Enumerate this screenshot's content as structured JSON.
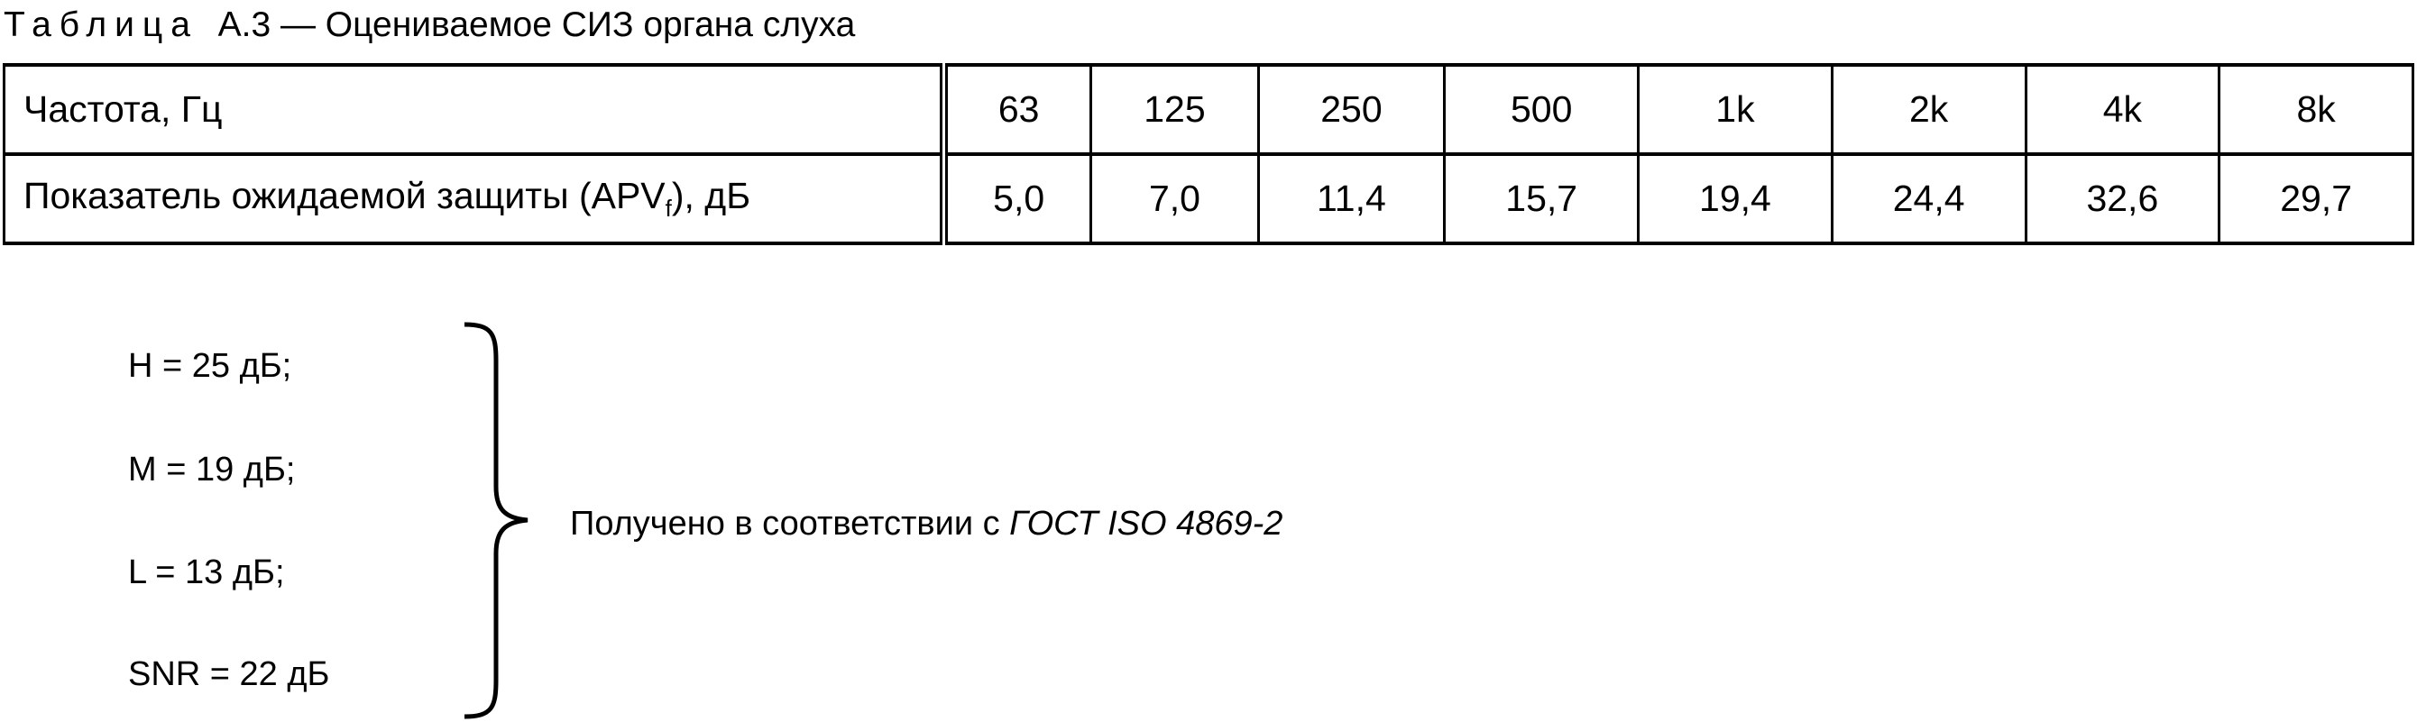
{
  "title": {
    "prefix": "Таблица",
    "number": "А.3",
    "text": " — Оцениваемое СИЗ органа слуха"
  },
  "table": {
    "row1": {
      "label": "Частота, Гц",
      "values": [
        "63",
        "125",
        "250",
        "500",
        "1k",
        "2k",
        "4k",
        "8k"
      ]
    },
    "row2": {
      "label_pre": "Показатель ожидаемой защиты (APV",
      "label_sub": "f",
      "label_post": "), дБ",
      "values": [
        "5,0",
        "7,0",
        "11,4",
        "15,7",
        "19,4",
        "24,4",
        "32,6",
        "29,7"
      ]
    }
  },
  "values": [
    "H = 25 дБ;",
    "M = 19 дБ;",
    "L = 13 дБ;",
    "SNR = 22 дБ"
  ],
  "note": {
    "text": "Получено в соответствии с ",
    "ref": "ГОСТ ISO 4869-2"
  }
}
